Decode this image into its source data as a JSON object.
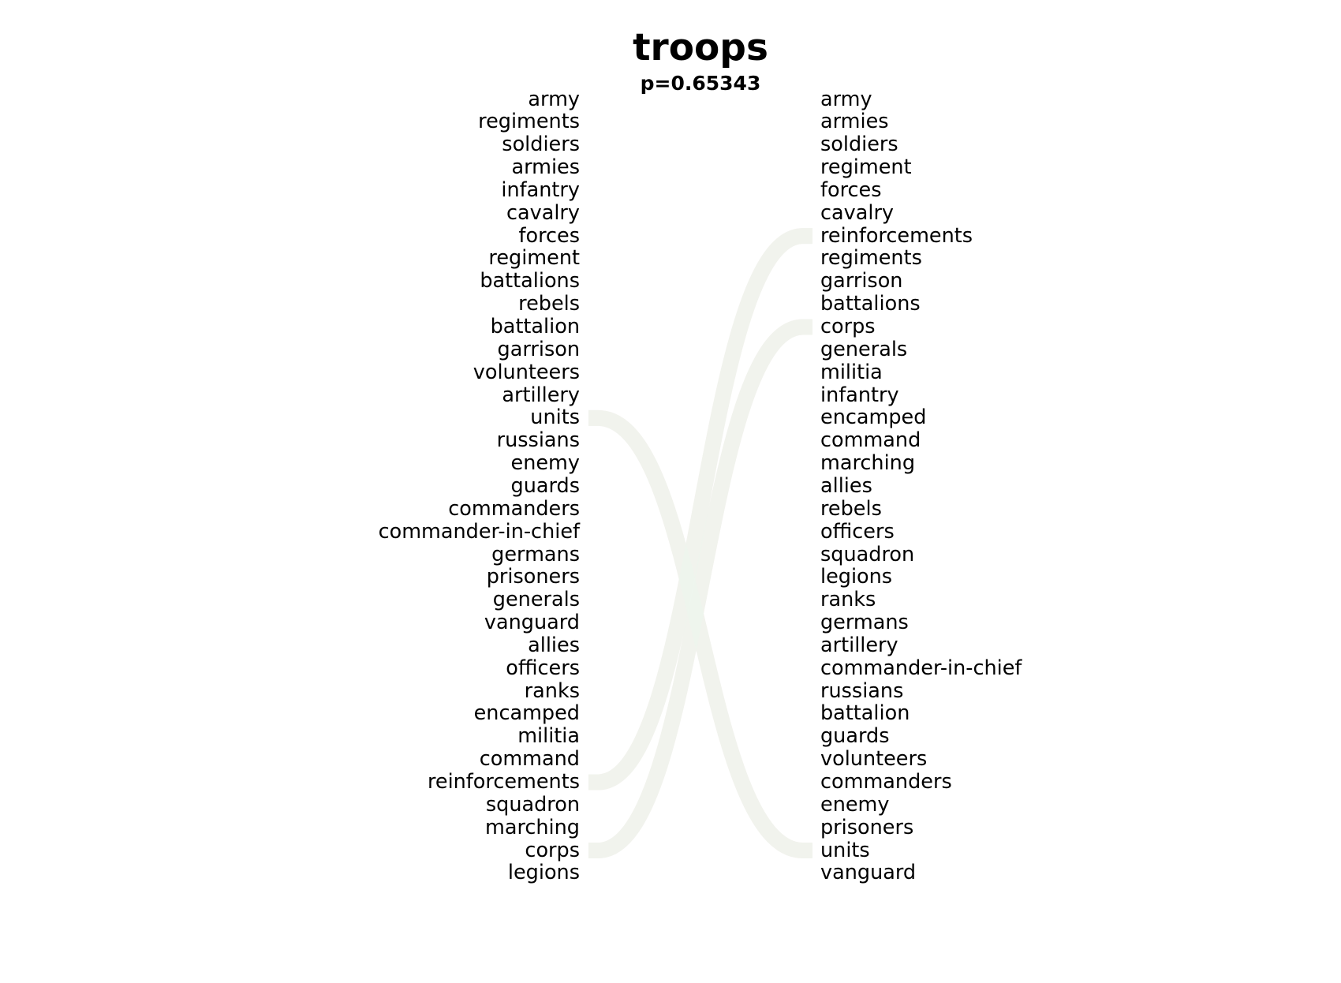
{
  "title": "troops",
  "subtitle": "p=0.65343",
  "left_list": [
    "army",
    "regiments",
    "soldiers",
    "armies",
    "infantry",
    "cavalry",
    "forces",
    "regiment",
    "battalions",
    "rebels",
    "battalion",
    "garrison",
    "volunteers",
    "artillery",
    "units",
    "russians",
    "enemy",
    "guards",
    "commanders",
    "commander-in-chief",
    "germans",
    "prisoners",
    "generals",
    "vanguard",
    "allies",
    "officers",
    "ranks",
    "encamped",
    "militia",
    "command",
    "reinforcements",
    "squadron",
    "marching",
    "corps",
    "legions"
  ],
  "right_list": [
    "army",
    "armies",
    "soldiers",
    "regiment",
    "forces",
    "cavalry",
    "reinforcements",
    "regiments",
    "garrison",
    "battalions",
    "corps",
    "generals",
    "militia",
    "infantry",
    "encamped",
    "command",
    "marching",
    "allies",
    "rebels",
    "officers",
    "squadron",
    "legions",
    "ranks",
    "germans",
    "artillery",
    "commander-in-chief",
    "russians",
    "battalion",
    "guards",
    "volunteers",
    "commanders",
    "enemy",
    "prisoners",
    "units",
    "vanguard"
  ],
  "links": [
    {
      "word": "units",
      "color": "#f7e6e6"
    },
    {
      "word": "reinforcements",
      "color": "#f7e6e6"
    },
    {
      "word": "corps",
      "color": "#f7e6e6"
    },
    {
      "word": "reinforcements",
      "color": "#eef5ee"
    },
    {
      "word": "corps",
      "color": "#eef5ee"
    },
    {
      "word": "units",
      "color": "#eef5ee"
    }
  ]
}
